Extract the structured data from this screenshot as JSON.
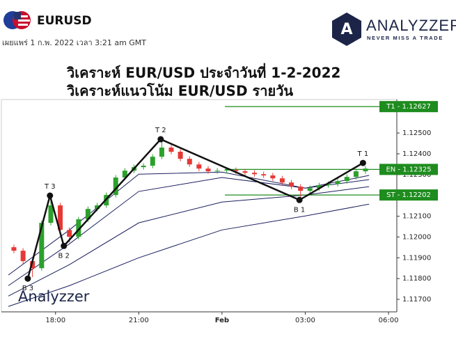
{
  "header": {
    "symbol": "EURUSD",
    "published": "เผยแพร่ 1 ก.พ. 2022 เวลา 3:21 am GMT"
  },
  "logo": {
    "icon": "A",
    "name": "ANALYZZER",
    "tagline": "NEVER MISS A TRADE"
  },
  "chart_data": {
    "type": "candlestick",
    "title": "วิเคราะห์ EUR/USD ประจำวันที่ 1-2-2022",
    "subtitle": "วิเคราะห์แนวโน้ม EUR/USD รายวัน",
    "watermark": "Analyzzer",
    "up_color": "#2ca02c",
    "down_color": "#e53935",
    "x": [
      16.5,
      16.83,
      17.17,
      17.5,
      17.83,
      18.17,
      18.5,
      18.83,
      19.17,
      19.5,
      19.83,
      20.17,
      20.5,
      20.83,
      21.17,
      21.5,
      21.83,
      22.17,
      22.5,
      22.83,
      23.17,
      23.5,
      23.83,
      24.17,
      24.5,
      24.83,
      25.17,
      25.5,
      25.83,
      26.17,
      26.5,
      26.83,
      27.17,
      27.5,
      27.83,
      28.17,
      28.5,
      28.83,
      29.17
    ],
    "open": [
      1.11951,
      1.11934,
      1.11884,
      1.1185,
      1.12068,
      1.12152,
      1.12034,
      1.12001,
      1.12085,
      1.12135,
      1.12152,
      1.12202,
      1.12286,
      1.12319,
      1.12336,
      1.12343,
      1.12386,
      1.1243,
      1.1241,
      1.12376,
      1.12349,
      1.12329,
      1.12316,
      1.12319,
      1.12322,
      1.12316,
      1.12309,
      1.12302,
      1.12296,
      1.12282,
      1.12262,
      1.12242,
      1.12222,
      1.12235,
      1.12249,
      1.12255,
      1.12269,
      1.12289,
      1.12316
    ],
    "high": [
      1.11963,
      1.11946,
      1.11896,
      1.1208,
      1.12195,
      1.12164,
      1.12046,
      1.12097,
      1.12147,
      1.12164,
      1.12214,
      1.12298,
      1.12331,
      1.12348,
      1.12355,
      1.12398,
      1.12477,
      1.12442,
      1.12422,
      1.12388,
      1.12361,
      1.12341,
      1.12331,
      1.12334,
      1.12334,
      1.12328,
      1.12321,
      1.12314,
      1.12308,
      1.12294,
      1.12274,
      1.12254,
      1.12247,
      1.12261,
      1.12267,
      1.12281,
      1.12301,
      1.12328,
      1.12341
    ],
    "low": [
      1.11922,
      1.11872,
      1.11807,
      1.11838,
      1.12056,
      1.12022,
      1.11974,
      1.11989,
      1.12073,
      1.12123,
      1.1214,
      1.1219,
      1.12274,
      1.12307,
      1.12324,
      1.12331,
      1.12374,
      1.12398,
      1.12364,
      1.12337,
      1.12317,
      1.12304,
      1.12304,
      1.12307,
      1.12304,
      1.12297,
      1.1229,
      1.12284,
      1.1227,
      1.1225,
      1.1223,
      1.12188,
      1.1221,
      1.12223,
      1.12237,
      1.12243,
      1.12257,
      1.12277,
      1.12304
    ],
    "close": [
      1.11934,
      1.11884,
      1.1185,
      1.12068,
      1.12152,
      1.12034,
      1.12001,
      1.12085,
      1.12135,
      1.12152,
      1.12202,
      1.12286,
      1.12319,
      1.12336,
      1.12343,
      1.12386,
      1.1243,
      1.1241,
      1.12376,
      1.12349,
      1.12329,
      1.12316,
      1.12319,
      1.12322,
      1.12316,
      1.12309,
      1.12302,
      1.12296,
      1.12282,
      1.12262,
      1.12242,
      1.12222,
      1.12235,
      1.12249,
      1.12255,
      1.12269,
      1.12289,
      1.12316,
      1.12329
    ],
    "ma_x": [
      16.3,
      18.5,
      21,
      24,
      27,
      29.3
    ],
    "ma_series": [
      {
        "color": "#1a1f5c",
        "values": [
          1.11666,
          1.11766,
          1.119,
          1.12034,
          1.12101,
          1.12158
        ]
      },
      {
        "color": "#1a1f5c",
        "values": [
          1.11716,
          1.11867,
          1.12068,
          1.12168,
          1.12202,
          1.12242
        ]
      },
      {
        "color": "#1a1f5c",
        "values": [
          1.11766,
          1.11967,
          1.12219,
          1.12286,
          1.12235,
          1.12276
        ]
      },
      {
        "color": "#1a1f5c",
        "values": [
          1.11817,
          1.12034,
          1.12302,
          1.12312,
          1.12235,
          1.12296
        ]
      }
    ],
    "zigzag": {
      "color": "#111111",
      "x": [
        17.0,
        17.8,
        18.3,
        21.79,
        26.79,
        29.08
      ],
      "values": [
        1.118,
        1.12199,
        1.11957,
        1.1247,
        1.12178,
        1.12356
      ],
      "labels": [
        "B 3",
        "T 3",
        "B 2",
        "T 2",
        "B 1",
        "T 1"
      ]
    },
    "levels": [
      {
        "label": "T1 - 1.12627",
        "value": 1.12627,
        "color": "#1e8c1e"
      },
      {
        "label": "EN - 1.12325",
        "value": 1.12325,
        "color": "#1e8c1e"
      },
      {
        "label": "ST - 1.12202",
        "value": 1.12202,
        "color": "#1e8c1e"
      }
    ],
    "xlim": [
      16.3,
      30.3
    ],
    "ylim": [
      1.1164,
      1.12661
    ],
    "xticks": [
      {
        "value": 18,
        "label": "18:00"
      },
      {
        "value": 21,
        "label": "21:00"
      },
      {
        "value": 24,
        "label": "Feb"
      },
      {
        "value": 27,
        "label": "03:00"
      },
      {
        "value": 30,
        "label": "06:00"
      }
    ],
    "yticks": [
      {
        "value": 1.117,
        "label": "1.11700"
      },
      {
        "value": 1.118,
        "label": "1.11800"
      },
      {
        "value": 1.119,
        "label": "1.11900"
      },
      {
        "value": 1.12,
        "label": "1.12000"
      },
      {
        "value": 1.121,
        "label": "1.12100"
      },
      {
        "value": 1.122,
        "label": "1.12200"
      },
      {
        "value": 1.123,
        "label": "1.12300"
      },
      {
        "value": 1.124,
        "label": "1.12400"
      },
      {
        "value": 1.125,
        "label": "1.12500"
      }
    ]
  }
}
